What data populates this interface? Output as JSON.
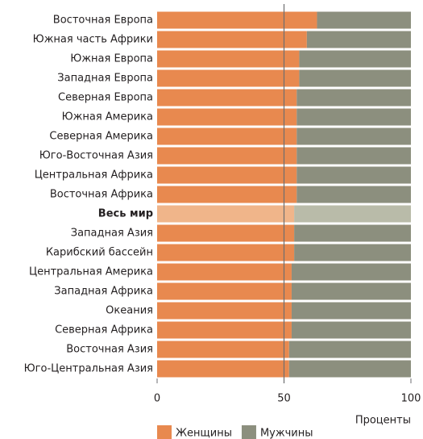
{
  "chart_data": {
    "type": "stacked_barh",
    "categories": [
      "Восточная Европа",
      "Южная часть Африки",
      "Южная Европа",
      "Западная Европа",
      "Северная Европа",
      "Южная Америка",
      "Северная Америка",
      "Юго-Восточная Азия",
      "Центральная Африка",
      "Восточная Африка",
      "Весь мир",
      "Западная Азия",
      "Карибский бассейн",
      "Центральная Америка",
      "Западная Африка",
      "Океания",
      "Северная Африка",
      "Восточная Азия",
      "Юго-Центральная Азия"
    ],
    "series": [
      {
        "name": "Женщины",
        "color": "#e8894f",
        "highlight_color": "#f0b58a",
        "values": [
          63,
          59,
          56,
          56,
          55,
          55,
          55,
          55,
          55,
          55,
          54,
          54,
          54,
          53,
          53,
          53,
          53,
          52,
          52
        ]
      },
      {
        "name": "Мужчины",
        "color": "#8c8f7e",
        "highlight_color": "#b9bba9",
        "values": [
          37,
          41,
          44,
          44,
          45,
          45,
          45,
          45,
          45,
          45,
          46,
          46,
          46,
          47,
          47,
          47,
          47,
          48,
          48
        ]
      }
    ],
    "highlight_index": 10,
    "xlabel": "Проценты",
    "xlim": [
      0,
      100
    ],
    "xticks": [
      0,
      50,
      100
    ],
    "reference_line": 50,
    "legend": "bottom"
  }
}
